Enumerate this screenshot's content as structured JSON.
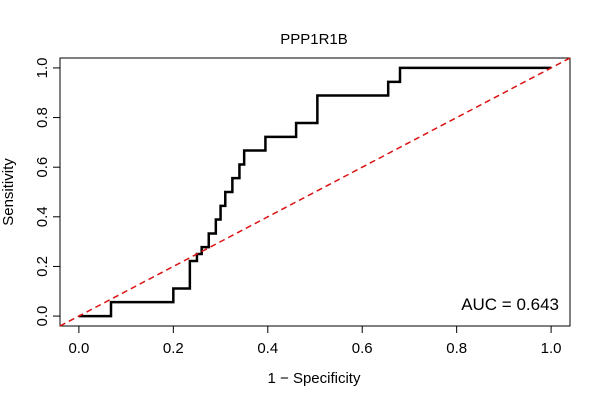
{
  "chart_data": {
    "type": "line",
    "title": "PPP1R1B",
    "xlabel": "1 − Specificity",
    "ylabel": "Sensitivity",
    "xlim": [
      -0.04,
      1.04
    ],
    "ylim": [
      -0.04,
      1.04
    ],
    "xticks": [
      0.0,
      0.2,
      0.4,
      0.6,
      0.8,
      1.0
    ],
    "xtick_labels": [
      "0.0",
      "0.2",
      "0.4",
      "0.6",
      "0.8",
      "1.0"
    ],
    "yticks": [
      0.0,
      0.2,
      0.4,
      0.6,
      0.8,
      1.0
    ],
    "ytick_labels": [
      "0.0",
      "0.2",
      "0.4",
      "0.6",
      "0.8",
      "1.0"
    ],
    "annotation": "AUC = 0.643",
    "series": [
      {
        "name": "ROC curve",
        "style": "step",
        "color": "#000000",
        "x": [
          0,
          0.068,
          0.068,
          0.2,
          0.2,
          0.235,
          0.235,
          0.25,
          0.25,
          0.26,
          0.26,
          0.275,
          0.275,
          0.29,
          0.29,
          0.3,
          0.3,
          0.31,
          0.31,
          0.325,
          0.325,
          0.34,
          0.34,
          0.35,
          0.35,
          0.395,
          0.395,
          0.46,
          0.46,
          0.505,
          0.505,
          0.655,
          0.655,
          0.68,
          0.68,
          1.0
        ],
        "y": [
          0,
          0,
          0.056,
          0.056,
          0.111,
          0.111,
          0.222,
          0.222,
          0.25,
          0.25,
          0.278,
          0.278,
          0.333,
          0.333,
          0.389,
          0.389,
          0.444,
          0.444,
          0.5,
          0.5,
          0.556,
          0.556,
          0.611,
          0.611,
          0.667,
          0.667,
          0.722,
          0.722,
          0.778,
          0.778,
          0.889,
          0.889,
          0.944,
          0.944,
          1.0,
          1.0
        ]
      },
      {
        "name": "Reference diagonal",
        "style": "dashed",
        "color": "#dd1111",
        "x": [
          -0.04,
          1.04
        ],
        "y": [
          -0.04,
          1.04
        ]
      }
    ]
  }
}
